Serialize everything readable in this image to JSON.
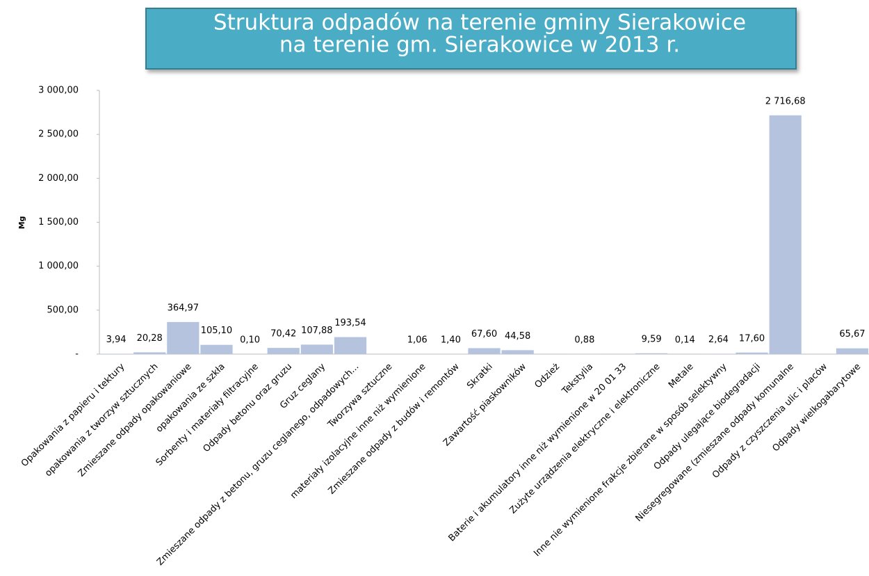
{
  "chart_data": {
    "type": "bar",
    "title": "Struktura odpadów na terenie gminy Sierakowice",
    "subtitle": "na terenie gm. Sierakowice w 2013 r.",
    "y_label": "Mg",
    "categories": [
      "Opakowania z papieru i tektury",
      "opakowania z tworzyw sztucznych",
      "Zmieszane odpady opakowaniowe",
      "opakowania ze szkła",
      "Sorbenty i materiały filtracyjne",
      "Odpady betonu oraz gruzu",
      "Gruz ceglany",
      "Zmieszane odpady z betonu, gruzu ceglanego, odpadowych...",
      "Tworzywa sztuczne",
      "materiały izolacyjne inne niż wymienione",
      "Zmieszane odpady z budów i remontów",
      "Skratki",
      "Zawartość piaskowników",
      "Odzież",
      "Tekstylia",
      "Baterie i akumulatory inne niż wymienione w 20 01 33",
      "Zużyte urządzenia elektryczne i elektroniczne",
      "Metale",
      "Inne nie wymienione frakcje zbierane w sposób selektywny",
      "Odpady ulegające biodegradacji",
      "Niesegregowane (zmieszane odpady komunalne",
      "Odpady z czyszczenia ulic i placów",
      "Odpady wielkogabarytowe"
    ],
    "values": [
      3.94,
      20.28,
      364.97,
      105.1,
      0.1,
      70.42,
      107.88,
      193.54,
      null,
      1.06,
      1.4,
      67.6,
      44.58,
      null,
      0.88,
      null,
      9.59,
      0.14,
      2.64,
      17.6,
      2716.68,
      null,
      65.67
    ],
    "value_labels": [
      "3,94",
      "20,28",
      "364,97",
      "105,10",
      "0,10",
      "70,42",
      "107,88",
      "193,54",
      null,
      "1,06",
      "1,40",
      "67,60",
      "44,58",
      null,
      "0,88",
      null,
      "9,59",
      "0,14",
      "2,64",
      "17,60",
      "2 716,68",
      null,
      "65,67"
    ],
    "color": "#b5c3df",
    "ylim": [
      0,
      3000
    ],
    "yticks": [
      {
        "value": 0,
        "label": "-"
      },
      {
        "value": 500,
        "label": "500,00"
      },
      {
        "value": 1000,
        "label": "1 000,00"
      },
      {
        "value": 1500,
        "label": "1 500,00"
      },
      {
        "value": 2000,
        "label": "2 000,00"
      },
      {
        "value": 2500,
        "label": "2 500,00"
      },
      {
        "value": 3000,
        "label": "3 000,00"
      }
    ],
    "grid": false
  }
}
